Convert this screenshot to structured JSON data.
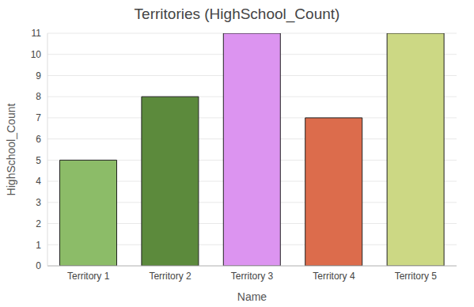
{
  "chart_data": {
    "type": "bar",
    "title": "Territories (HighSchool_Count)",
    "xlabel": "Name",
    "ylabel": "HighSchool_Count",
    "categories": [
      "Territory 1",
      "Territory 2",
      "Territory 3",
      "Territory 4",
      "Territory 5"
    ],
    "values": [
      5,
      8,
      11,
      7,
      11
    ],
    "colors": [
      "#8cbc68",
      "#5c8a3c",
      "#dc94f0",
      "#dc6c4c",
      "#ccd884"
    ],
    "ylim": [
      0,
      11
    ],
    "yticks": [
      0,
      1,
      2,
      3,
      4,
      5,
      6,
      7,
      8,
      9,
      10,
      11
    ],
    "grid": true
  }
}
